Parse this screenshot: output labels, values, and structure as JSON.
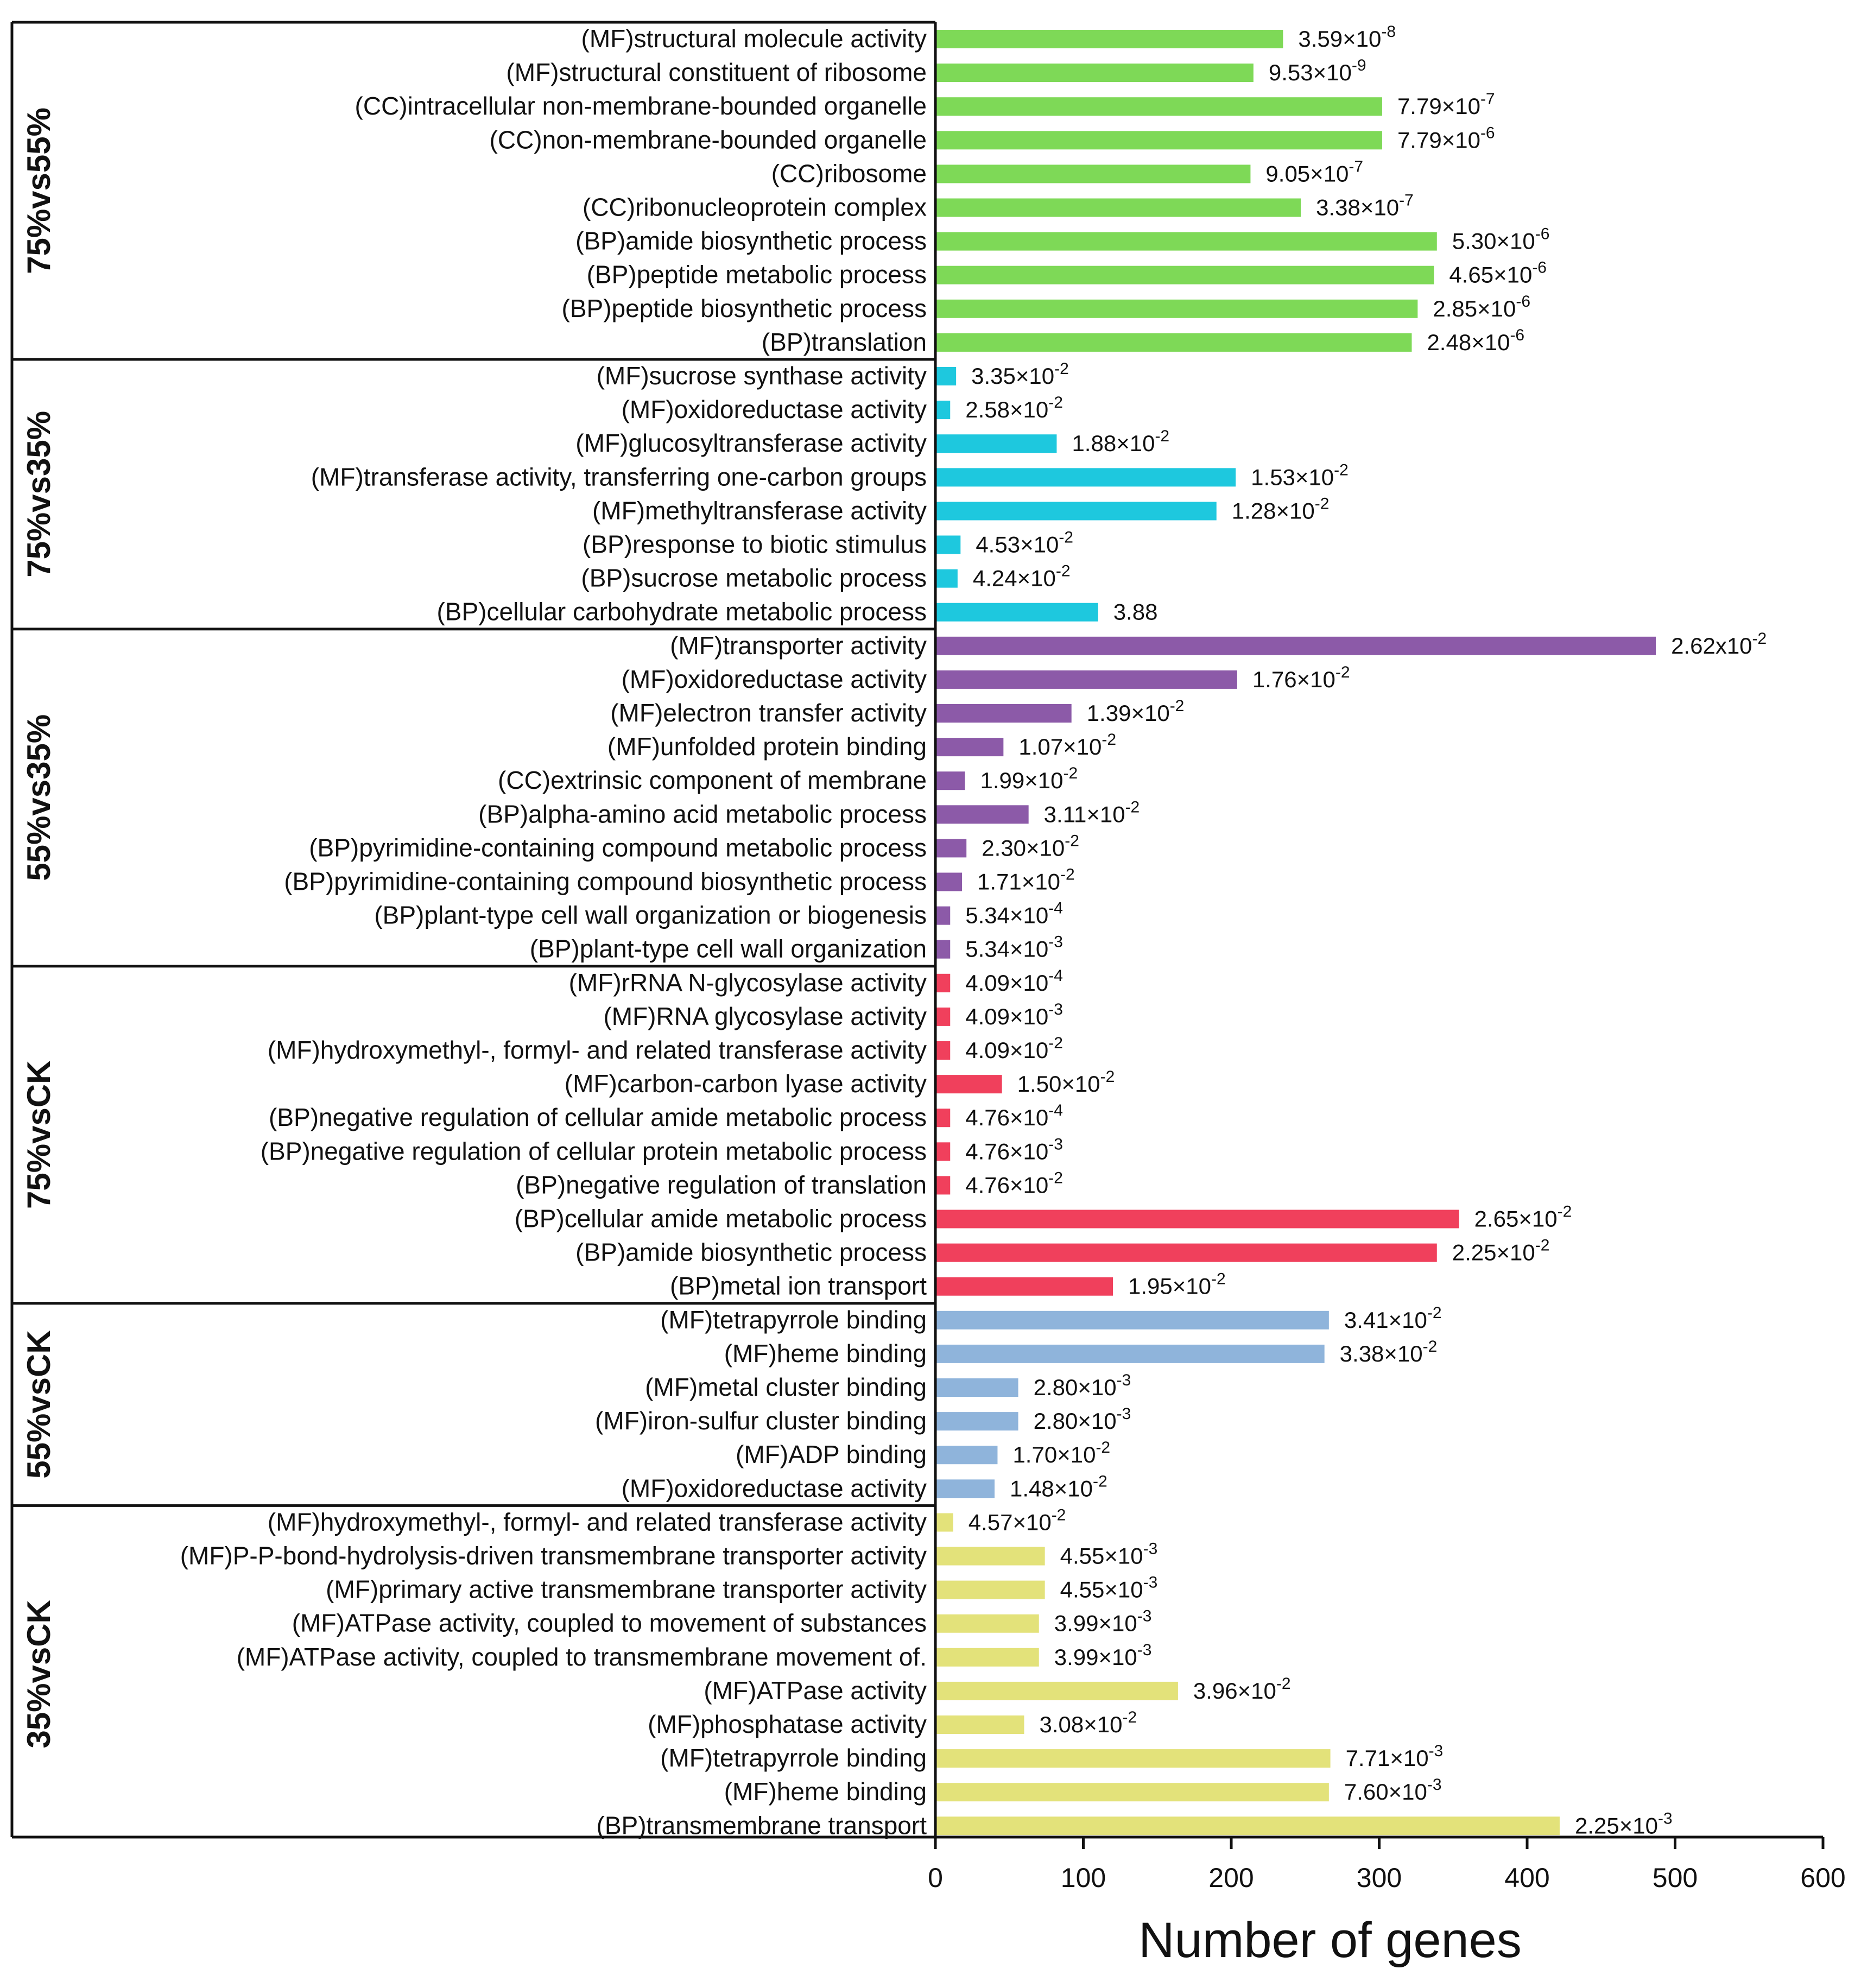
{
  "chart_data": {
    "type": "bar",
    "orientation": "horizontal",
    "xlabel": "Number of  genes",
    "xlim": [
      0,
      600
    ],
    "xticks": [
      "0",
      "100",
      "200",
      "300",
      "400",
      "500",
      "600"
    ],
    "groups": [
      {
        "name": "75%vs55%",
        "color": "#7ed957",
        "items": [
          {
            "label": "(MF)structural molecule activity",
            "value": 235,
            "pmant": "3.59",
            "pexp": "-8"
          },
          {
            "label": "(MF)structural constituent of ribosome",
            "value": 215,
            "pmant": "9.53",
            "pexp": "-9"
          },
          {
            "label": "(CC)intracellular non-membrane-bounded organelle",
            "value": 302,
            "pmant": "7.79",
            "pexp": "-7"
          },
          {
            "label": "(CC)non-membrane-bounded organelle",
            "value": 302,
            "pmant": "7.79",
            "pexp": "-6"
          },
          {
            "label": "(CC)ribosome",
            "value": 213,
            "pmant": "9.05",
            "pexp": "-7"
          },
          {
            "label": "(CC)ribonucleoprotein complex",
            "value": 247,
            "pmant": "3.38",
            "pexp": "-7"
          },
          {
            "label": "(BP)amide biosynthetic process",
            "value": 339,
            "pmant": "5.30",
            "pexp": "-6"
          },
          {
            "label": "(BP)peptide metabolic process",
            "value": 337,
            "pmant": "4.65",
            "pexp": "-6"
          },
          {
            "label": "(BP)peptide biosynthetic process",
            "value": 326,
            "pmant": "2.85",
            "pexp": "-6"
          },
          {
            "label": "(BP)translation",
            "value": 322,
            "pmant": "2.48",
            "pexp": "-6"
          }
        ]
      },
      {
        "name": "75%vs35%",
        "color": "#1ec8de",
        "items": [
          {
            "label": "(MF)sucrose synthase activity",
            "value": 14,
            "pmant": "3.35",
            "pexp": "-2"
          },
          {
            "label": "(MF)oxidoreductase activity",
            "value": 10,
            "pmant": "2.58",
            "pexp": "-2"
          },
          {
            "label": "(MF)glucosyltransferase activity",
            "value": 82,
            "pmant": "1.88",
            "pexp": "-2"
          },
          {
            "label": "(MF)transferase activity, transferring one-carbon groups",
            "value": 203,
            "pmant": "1.53",
            "pexp": "-2"
          },
          {
            "label": "(MF)methyltransferase activity",
            "value": 190,
            "pmant": "1.28",
            "pexp": "-2"
          },
          {
            "label": "(BP)response to biotic stimulus",
            "value": 17,
            "pmant": "4.53",
            "pexp": "-2"
          },
          {
            "label": "(BP)sucrose metabolic process",
            "value": 15,
            "pmant": "4.24",
            "pexp": "-2"
          },
          {
            "label": "(BP)cellular carbohydrate metabolic process",
            "value": 110,
            "pmant": "3.88",
            "pexp": ""
          }
        ]
      },
      {
        "name": "55%vs35%",
        "color": "#8c5aa8",
        "items": [
          {
            "label": "(MF)transporter activity",
            "value": 487,
            "pmant": "2.62",
            "pexp": "-2",
            "plain": true
          },
          {
            "label": "(MF)oxidoreductase activity",
            "value": 204,
            "pmant": "1.76",
            "pexp": "-2"
          },
          {
            "label": "(MF)electron transfer activity",
            "value": 92,
            "pmant": "1.39",
            "pexp": "-2"
          },
          {
            "label": "(MF)unfolded protein binding",
            "value": 46,
            "pmant": "1.07",
            "pexp": "-2"
          },
          {
            "label": "(CC)extrinsic component of membrane",
            "value": 20,
            "pmant": "1.99",
            "pexp": "-2"
          },
          {
            "label": "(BP)alpha-amino acid metabolic process",
            "value": 63,
            "pmant": "3.11",
            "pexp": "-2"
          },
          {
            "label": "(BP)pyrimidine-containing compound metabolic process",
            "value": 21,
            "pmant": "2.30",
            "pexp": "-2"
          },
          {
            "label": "(BP)pyrimidine-containing compound biosynthetic process",
            "value": 18,
            "pmant": "1.71",
            "pexp": "-2"
          },
          {
            "label": "(BP)plant-type cell wall organization or biogenesis",
            "value": 10,
            "pmant": "5.34",
            "pexp": "-4"
          },
          {
            "label": "(BP)plant-type cell wall organization",
            "value": 10,
            "pmant": "5.34",
            "pexp": "-3"
          }
        ]
      },
      {
        "name": "75%vsCK",
        "color": "#f0405c",
        "items": [
          {
            "label": "(MF)rRNA N-glycosylase activity",
            "value": 10,
            "pmant": "4.09",
            "pexp": "-4"
          },
          {
            "label": "(MF)RNA glycosylase activity",
            "value": 10,
            "pmant": "4.09",
            "pexp": "-3"
          },
          {
            "label": "(MF)hydroxymethyl-, formyl- and related transferase activity",
            "value": 10,
            "pmant": "4.09",
            "pexp": "-2"
          },
          {
            "label": "(MF)carbon-carbon lyase activity",
            "value": 45,
            "pmant": "1.50",
            "pexp": "-2"
          },
          {
            "label": "(BP)negative regulation of cellular amide metabolic process",
            "value": 10,
            "pmant": "4.76",
            "pexp": "-4"
          },
          {
            "label": "(BP)negative regulation of cellular protein metabolic process",
            "value": 10,
            "pmant": "4.76",
            "pexp": "-3"
          },
          {
            "label": "(BP)negative regulation of translation",
            "value": 10,
            "pmant": "4.76",
            "pexp": "-2"
          },
          {
            "label": "(BP)cellular amide metabolic process",
            "value": 354,
            "pmant": "2.65",
            "pexp": "-2"
          },
          {
            "label": "(BP)amide biosynthetic process",
            "value": 339,
            "pmant": "2.25",
            "pexp": "-2"
          },
          {
            "label": "(BP)metal ion transport",
            "value": 120,
            "pmant": "1.95",
            "pexp": "-2"
          }
        ]
      },
      {
        "name": "55%vsCK",
        "color": "#8fb4db",
        "items": [
          {
            "label": "(MF)tetrapyrrole binding",
            "value": 266,
            "pmant": "3.41",
            "pexp": "-2"
          },
          {
            "label": "(MF)heme binding",
            "value": 263,
            "pmant": "3.38",
            "pexp": "-2"
          },
          {
            "label": "(MF)metal cluster binding",
            "value": 56,
            "pmant": "2.80",
            "pexp": "-3"
          },
          {
            "label": "(MF)iron-sulfur cluster binding",
            "value": 56,
            "pmant": "2.80",
            "pexp": "-3"
          },
          {
            "label": "(MF)ADP binding",
            "value": 42,
            "pmant": "1.70",
            "pexp": "-2"
          },
          {
            "label": "(MF)oxidoreductase activity",
            "value": 40,
            "pmant": "1.48",
            "pexp": "-2"
          }
        ]
      },
      {
        "name": "35%vsCK",
        "color": "#e3e27a",
        "items": [
          {
            "label": "(MF)hydroxymethyl-, formyl- and related transferase activity",
            "value": 12,
            "pmant": "4.57",
            "pexp": "-2"
          },
          {
            "label": "(MF)P-P-bond-hydrolysis-driven transmembrane transporter activity",
            "value": 74,
            "pmant": "4.55",
            "pexp": "-3"
          },
          {
            "label": "(MF)primary active transmembrane transporter activity",
            "value": 74,
            "pmant": "4.55",
            "pexp": "-3"
          },
          {
            "label": "(MF)ATPase activity, coupled to movement of substances",
            "value": 70,
            "pmant": "3.99",
            "pexp": "-3"
          },
          {
            "label": "(MF)ATPase activity, coupled to transmembrane movement of.",
            "value": 70,
            "pmant": "3.99",
            "pexp": "-3"
          },
          {
            "label": "(MF)ATPase activity",
            "value": 164,
            "pmant": "3.96",
            "pexp": "-2"
          },
          {
            "label": "(MF)phosphatase activity",
            "value": 60,
            "pmant": "3.08",
            "pexp": "-2"
          },
          {
            "label": "(MF)tetrapyrrole binding",
            "value": 267,
            "pmant": "7.71",
            "pexp": "-3"
          },
          {
            "label": "(MF)heme binding",
            "value": 266,
            "pmant": "7.60",
            "pexp": "-3"
          },
          {
            "label": "(BP)transmembrane transport",
            "value": 422,
            "pmant": "2.25",
            "pexp": "-3"
          }
        ]
      }
    ]
  }
}
